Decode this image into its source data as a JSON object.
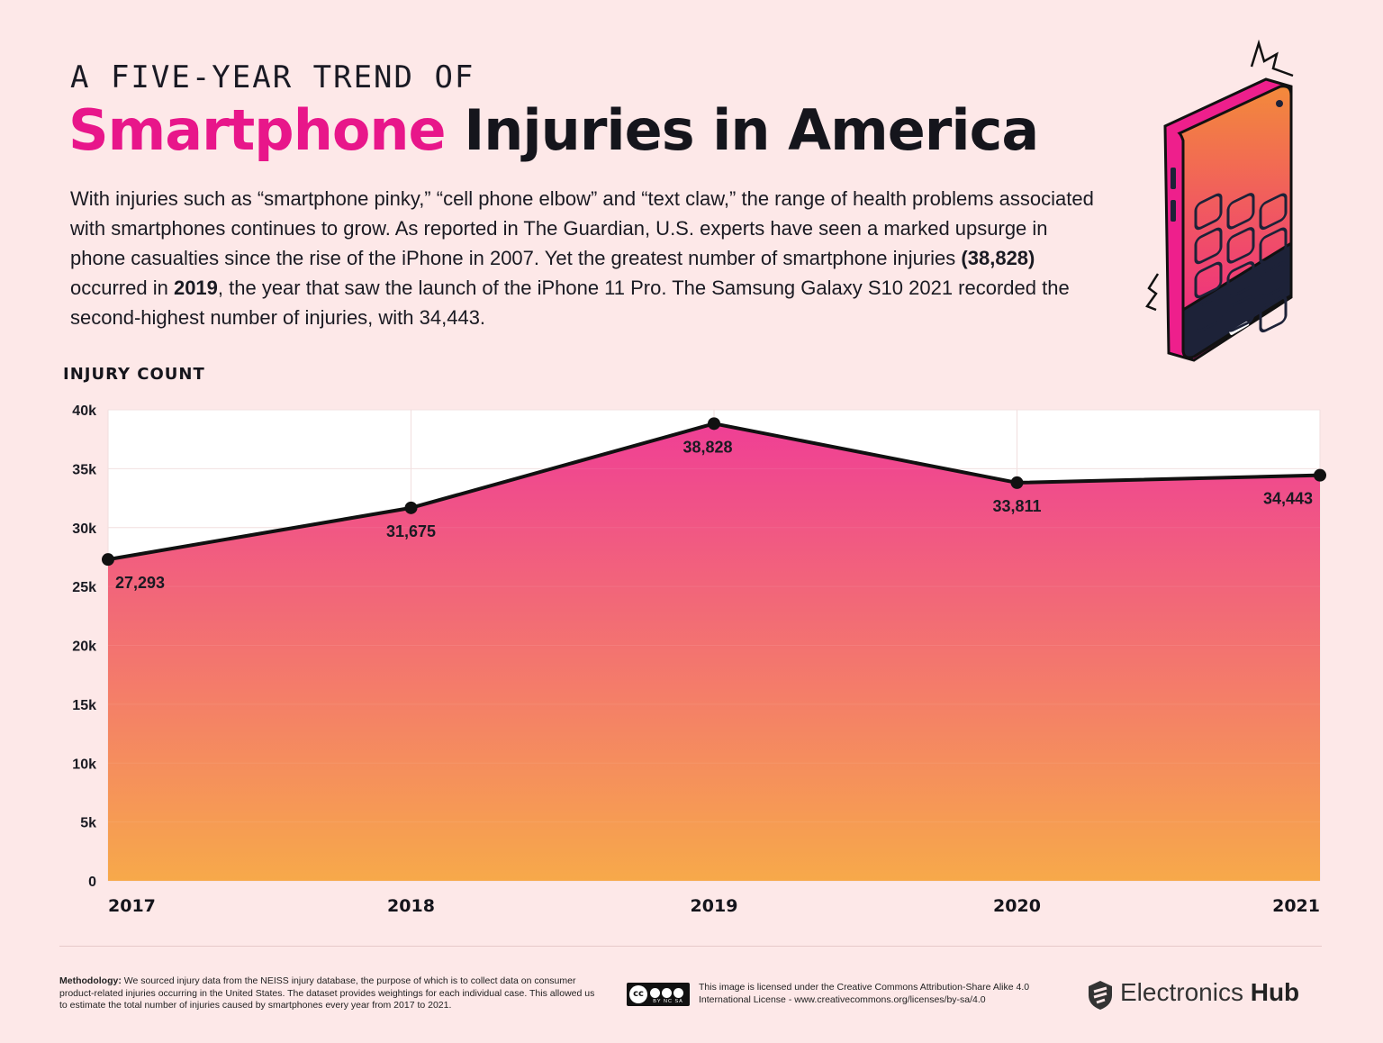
{
  "header": {
    "kicker": "A FIVE-YEAR TREND OF",
    "title_highlight": "Smartphone",
    "title_rest": "Injuries in America",
    "intro_parts": [
      "With injuries such as “smartphone pinky,” “cell phone elbow” and “text claw,” the range of health problems associated with smartphones continues to grow. As reported in The Guardian, U.S. experts have seen a marked upsurge in phone casualties since the rise of the iPhone in 2007. Yet the greatest number of smartphone injuries ",
      "(38,828)",
      " occurred in ",
      "2019",
      ", the year that saw the launch of the iPhone 11 Pro. The Samsung Galaxy S10 2021 recorded the second-highest number of injuries, with 34,443."
    ]
  },
  "illustration": {
    "icon": "smartphone-icon"
  },
  "colors": {
    "background": "#fde8e8",
    "accent": "#e8168a",
    "area_top": "#ef3f95",
    "area_bottom": "#f7a94a",
    "line": "#111111"
  },
  "chart_data": {
    "type": "area",
    "ylabel": "INJURY COUNT",
    "categories": [
      "2017",
      "2018",
      "2019",
      "2020",
      "2021"
    ],
    "values": [
      27293,
      31675,
      38828,
      33811,
      34443
    ],
    "data_labels": [
      "27,293",
      "31,675",
      "38,828",
      "33,811",
      "34,443"
    ],
    "ylim": [
      0,
      40000
    ],
    "yticks": [
      0,
      5000,
      10000,
      15000,
      20000,
      25000,
      30000,
      35000,
      40000
    ],
    "ytick_labels": [
      "0",
      "5k",
      "10k",
      "15k",
      "20k",
      "25k",
      "30k",
      "35k",
      "40k"
    ],
    "grid": true,
    "markers": true
  },
  "footer": {
    "methodology_label": "Methodology:",
    "methodology_text": " We sourced injury data from the NEISS injury database, the purpose of which is to collect data on consumer product-related injuries occurring in the United States. The dataset provides weightings for each individual case. This allowed us to estimate the total number of injuries caused by smartphones every year from 2017 to 2021.",
    "license_badge": "cc",
    "license_badge_tags": "BY  NC  SA",
    "license_text": "This image is licensed under the Creative Commons Attribution-Share Alike 4.0 International License - www.creativecommons.org/licenses/by-sa/4.0",
    "brand_light": "Electronics",
    "brand_bold": "Hub"
  }
}
